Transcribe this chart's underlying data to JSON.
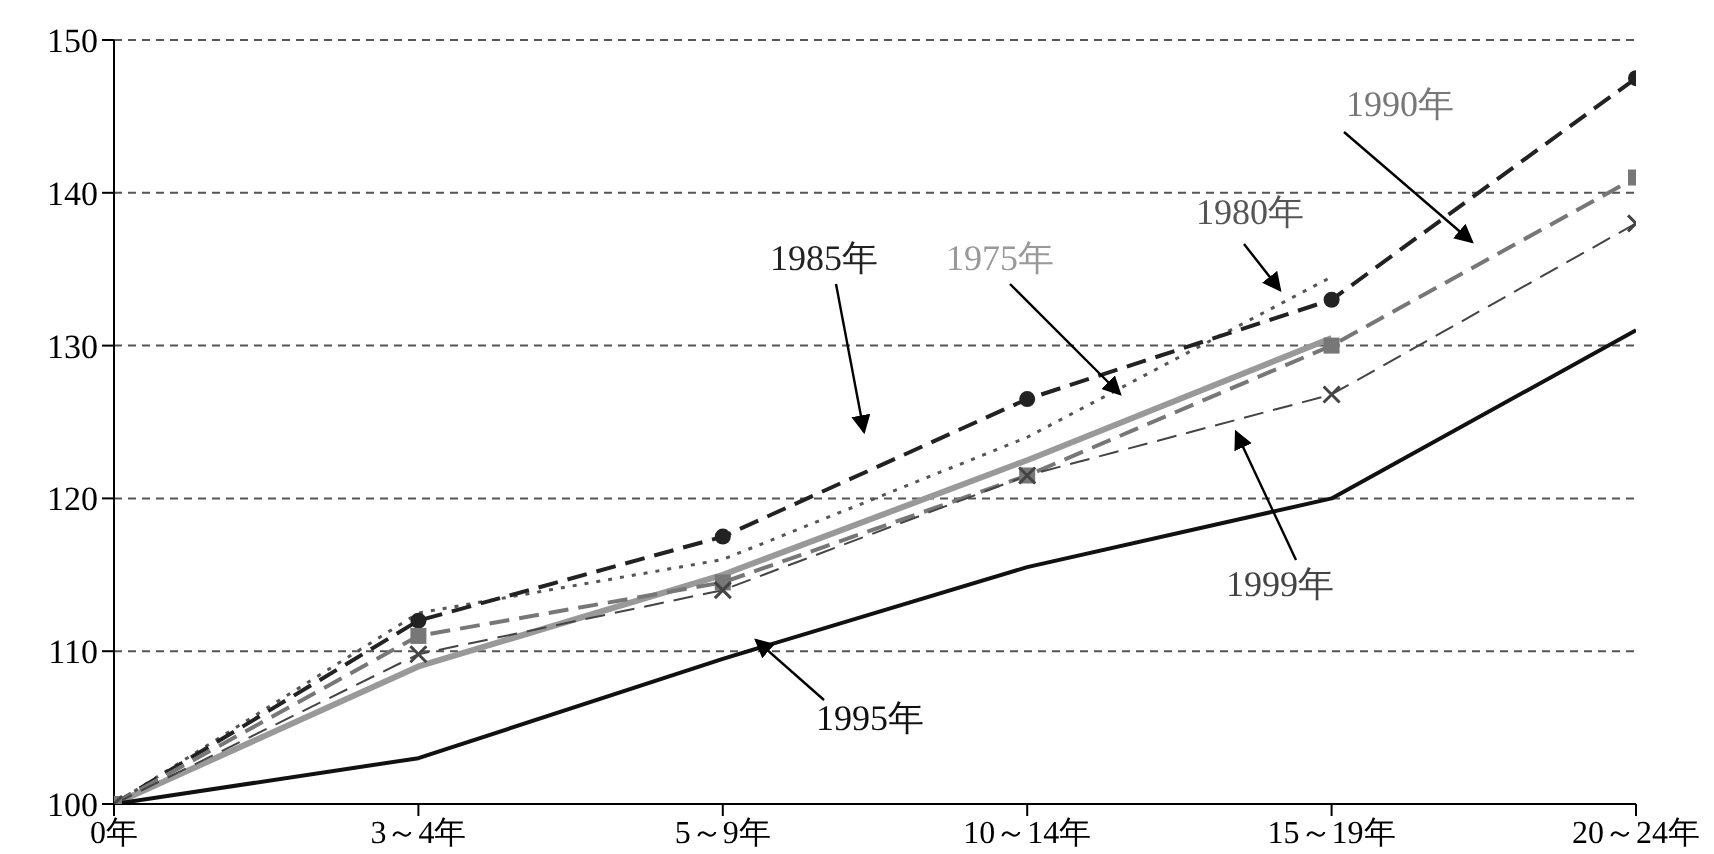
{
  "chart_data": {
    "type": "line",
    "categories": [
      "0年",
      "3～4年",
      "5～9年",
      "10～14年",
      "15～19年",
      "20～24年"
    ],
    "ylim": [
      100,
      150
    ],
    "yticks": [
      100,
      110,
      120,
      130,
      140,
      150
    ],
    "grid": "y",
    "legend": false,
    "series": [
      {
        "name": "1975年",
        "color": "#999999",
        "line_style": "solid",
        "marker": "none",
        "values": [
          100,
          109,
          115,
          122.5,
          130.5,
          null
        ]
      },
      {
        "name": "1980年",
        "color": "#555555",
        "line_style": "dotted",
        "marker": "none",
        "values": [
          100,
          112.5,
          116,
          124,
          134.5,
          null
        ]
      },
      {
        "name": "1985年",
        "color": "#222222",
        "line_style": "dashed",
        "marker": "circle",
        "values": [
          100,
          112,
          117.5,
          126.5,
          133,
          147.5
        ]
      },
      {
        "name": "1990年",
        "color": "#777777",
        "line_style": "dashed",
        "marker": "square",
        "values": [
          100,
          111,
          114.5,
          121.5,
          130,
          141
        ]
      },
      {
        "name": "1995年",
        "color": "#111111",
        "line_style": "solid",
        "marker": "none",
        "values": [
          100,
          103,
          109.5,
          115.5,
          120,
          131
        ]
      },
      {
        "name": "1999年",
        "color": "#444444",
        "line_style": "dashed",
        "marker": "cross",
        "values": [
          100,
          109.8,
          114,
          121.5,
          126.8,
          138
        ]
      }
    ]
  }
}
